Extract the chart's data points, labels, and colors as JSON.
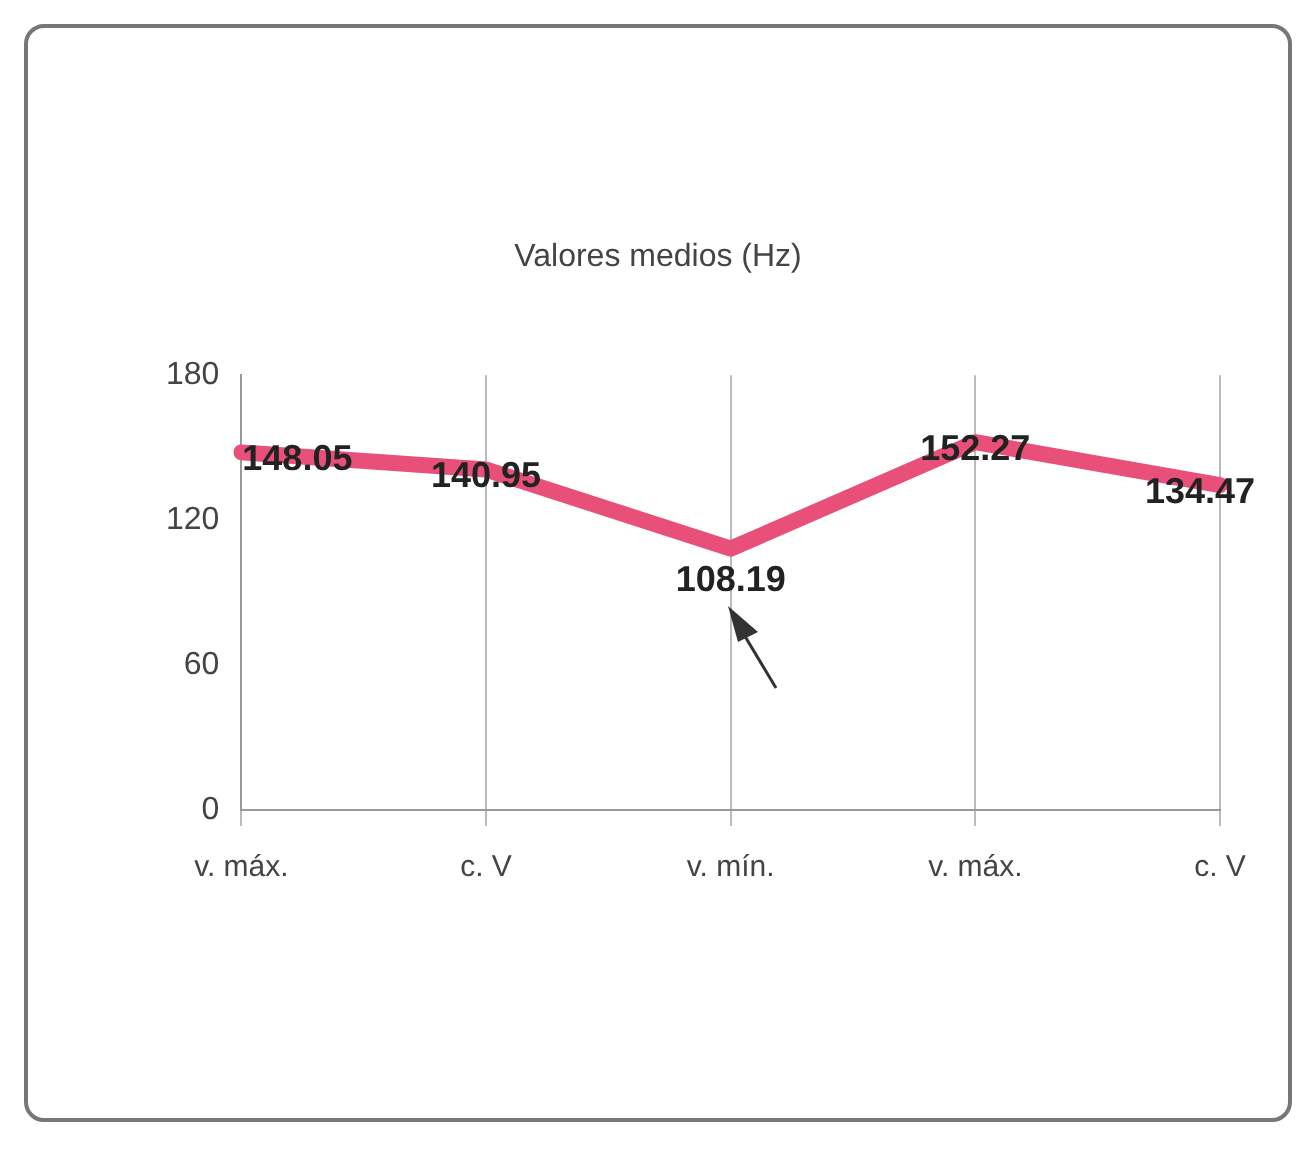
{
  "chart_data": {
    "type": "line",
    "title": "Valores medios (Hz)",
    "categories": [
      "v. máx.",
      "c. V",
      "v. mín.",
      "v. máx.",
      "c. V"
    ],
    "values": [
      148.05,
      140.95,
      108.19,
      152.27,
      134.47
    ],
    "color": "#e8507a",
    "data_labels": true,
    "ylim": [
      0,
      180
    ],
    "yticks": [
      0,
      60,
      120,
      180
    ],
    "grid": "x",
    "legend": false,
    "marker": "none"
  }
}
